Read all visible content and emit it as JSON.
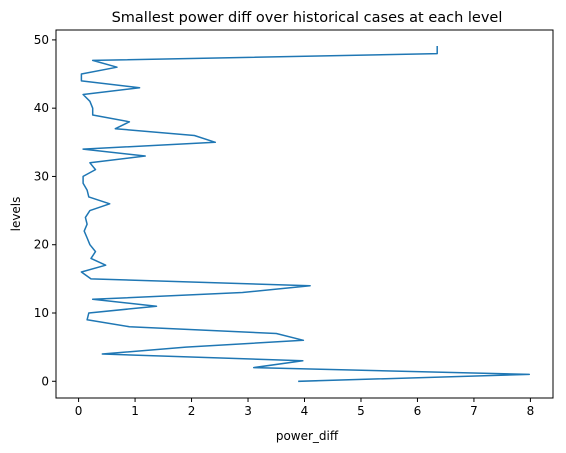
{
  "chart_data": {
    "type": "line",
    "title": "Smallest power diff over historical cases at each level",
    "xlabel": "power_diff",
    "ylabel": "levels",
    "xlim": [
      -0.4,
      8.4
    ],
    "ylim": [
      -2.45,
      51.45
    ],
    "xticks": [
      0,
      1,
      2,
      3,
      4,
      5,
      6,
      7,
      8
    ],
    "yticks": [
      0,
      10,
      20,
      30,
      40,
      50
    ],
    "grid": false,
    "series": [
      {
        "name": "power_diff",
        "color": "#1f77b4",
        "y": [
          0,
          1,
          2,
          3,
          4,
          5,
          6,
          7,
          8,
          9,
          10,
          11,
          12,
          13,
          14,
          15,
          16,
          17,
          18,
          19,
          20,
          21,
          22,
          23,
          24,
          25,
          26,
          27,
          28,
          29,
          30,
          31,
          32,
          33,
          34,
          35,
          36,
          37,
          38,
          39,
          40,
          41,
          42,
          43,
          44,
          45,
          46,
          47,
          48,
          49
        ],
        "x": [
          3.9,
          7.98,
          3.1,
          3.97,
          0.42,
          1.9,
          3.98,
          3.5,
          0.9,
          0.15,
          0.18,
          1.38,
          0.25,
          2.9,
          4.1,
          0.22,
          0.05,
          0.48,
          0.22,
          0.3,
          0.2,
          0.15,
          0.1,
          0.15,
          0.12,
          0.2,
          0.55,
          0.18,
          0.15,
          0.08,
          0.08,
          0.3,
          0.2,
          1.18,
          0.08,
          2.42,
          2.05,
          0.65,
          0.9,
          0.25,
          0.25,
          0.2,
          0.08,
          1.08,
          0.05,
          0.05,
          0.68,
          0.25,
          6.35,
          6.35
        ]
      }
    ]
  }
}
